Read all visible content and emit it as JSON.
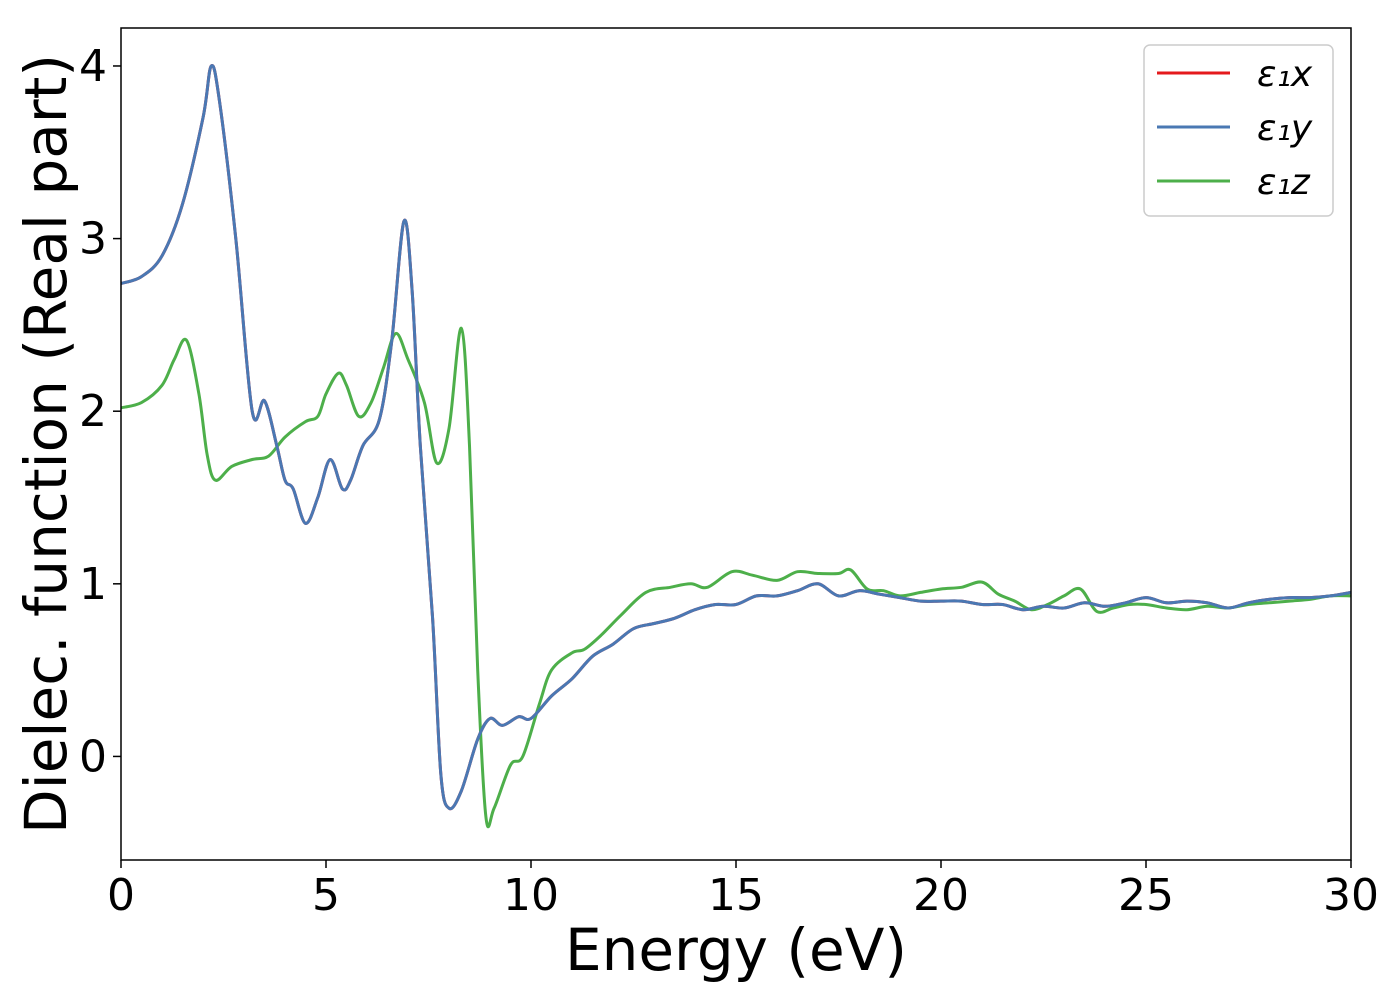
{
  "chart_data": {
    "type": "line",
    "title": "",
    "xlabel": "Energy (eV)",
    "ylabel": "Dielec. function (Real part)",
    "xlim": [
      0,
      30
    ],
    "ylim": [
      -0.6,
      4.22
    ],
    "xticks": [
      0,
      5,
      10,
      15,
      20,
      25,
      30
    ],
    "xtick_labels": [
      "0",
      "5",
      "10",
      "15",
      "20",
      "25",
      "30"
    ],
    "yticks": [
      0,
      1,
      2,
      3,
      4
    ],
    "ytick_labels": [
      "0",
      "1",
      "2",
      "3",
      "4"
    ],
    "grid": false,
    "legend_position": "top-right",
    "series": [
      {
        "name": "ε₁x",
        "color": "#e41a1c",
        "points": [
          [
            0,
            2.74
          ],
          [
            0.5,
            2.78
          ],
          [
            1.0,
            2.9
          ],
          [
            1.5,
            3.2
          ],
          [
            2.0,
            3.7
          ],
          [
            2.2,
            4.0
          ],
          [
            2.4,
            3.8
          ],
          [
            2.8,
            3.0
          ],
          [
            3.2,
            2.0
          ],
          [
            3.5,
            2.06
          ],
          [
            3.8,
            1.8
          ],
          [
            4.0,
            1.6
          ],
          [
            4.2,
            1.55
          ],
          [
            4.5,
            1.35
          ],
          [
            4.8,
            1.5
          ],
          [
            5.1,
            1.72
          ],
          [
            5.4,
            1.55
          ],
          [
            5.6,
            1.6
          ],
          [
            5.9,
            1.8
          ],
          [
            6.3,
            1.95
          ],
          [
            6.6,
            2.4
          ],
          [
            6.9,
            3.1
          ],
          [
            7.1,
            2.7
          ],
          [
            7.3,
            1.8
          ],
          [
            7.6,
            0.8
          ],
          [
            7.8,
            -0.1
          ],
          [
            8.0,
            -0.3
          ],
          [
            8.3,
            -0.2
          ],
          [
            8.7,
            0.1
          ],
          [
            9.0,
            0.22
          ],
          [
            9.3,
            0.18
          ],
          [
            9.7,
            0.23
          ],
          [
            10.0,
            0.22
          ],
          [
            10.5,
            0.35
          ],
          [
            11.0,
            0.45
          ],
          [
            11.5,
            0.58
          ],
          [
            12.0,
            0.65
          ],
          [
            12.5,
            0.74
          ],
          [
            13.0,
            0.77
          ],
          [
            13.5,
            0.8
          ],
          [
            14.0,
            0.85
          ],
          [
            14.5,
            0.88
          ],
          [
            15.0,
            0.88
          ],
          [
            15.5,
            0.93
          ],
          [
            16.0,
            0.93
          ],
          [
            16.5,
            0.96
          ],
          [
            17.0,
            1.0
          ],
          [
            17.5,
            0.93
          ],
          [
            18.0,
            0.96
          ],
          [
            18.5,
            0.94
          ],
          [
            19.0,
            0.92
          ],
          [
            19.5,
            0.9
          ],
          [
            20.0,
            0.9
          ],
          [
            20.5,
            0.9
          ],
          [
            21.0,
            0.88
          ],
          [
            21.5,
            0.88
          ],
          [
            22.0,
            0.85
          ],
          [
            22.5,
            0.87
          ],
          [
            23.0,
            0.86
          ],
          [
            23.5,
            0.89
          ],
          [
            24.0,
            0.87
          ],
          [
            24.5,
            0.89
          ],
          [
            25.0,
            0.92
          ],
          [
            25.5,
            0.89
          ],
          [
            26.0,
            0.9
          ],
          [
            26.5,
            0.89
          ],
          [
            27.0,
            0.86
          ],
          [
            27.5,
            0.89
          ],
          [
            28.0,
            0.91
          ],
          [
            28.5,
            0.92
          ],
          [
            29.0,
            0.92
          ],
          [
            29.5,
            0.93
          ],
          [
            30.0,
            0.95
          ]
        ]
      },
      {
        "name": "ε₁y",
        "color": "#4a78b3",
        "points": [
          [
            0,
            2.74
          ],
          [
            0.5,
            2.78
          ],
          [
            1.0,
            2.9
          ],
          [
            1.5,
            3.2
          ],
          [
            2.0,
            3.7
          ],
          [
            2.2,
            4.0
          ],
          [
            2.4,
            3.8
          ],
          [
            2.8,
            3.0
          ],
          [
            3.2,
            2.0
          ],
          [
            3.5,
            2.06
          ],
          [
            3.8,
            1.8
          ],
          [
            4.0,
            1.6
          ],
          [
            4.2,
            1.55
          ],
          [
            4.5,
            1.35
          ],
          [
            4.8,
            1.5
          ],
          [
            5.1,
            1.72
          ],
          [
            5.4,
            1.55
          ],
          [
            5.6,
            1.6
          ],
          [
            5.9,
            1.8
          ],
          [
            6.3,
            1.95
          ],
          [
            6.6,
            2.4
          ],
          [
            6.9,
            3.1
          ],
          [
            7.1,
            2.7
          ],
          [
            7.3,
            1.8
          ],
          [
            7.6,
            0.8
          ],
          [
            7.8,
            -0.1
          ],
          [
            8.0,
            -0.3
          ],
          [
            8.3,
            -0.2
          ],
          [
            8.7,
            0.1
          ],
          [
            9.0,
            0.22
          ],
          [
            9.3,
            0.18
          ],
          [
            9.7,
            0.23
          ],
          [
            10.0,
            0.22
          ],
          [
            10.5,
            0.35
          ],
          [
            11.0,
            0.45
          ],
          [
            11.5,
            0.58
          ],
          [
            12.0,
            0.65
          ],
          [
            12.5,
            0.74
          ],
          [
            13.0,
            0.77
          ],
          [
            13.5,
            0.8
          ],
          [
            14.0,
            0.85
          ],
          [
            14.5,
            0.88
          ],
          [
            15.0,
            0.88
          ],
          [
            15.5,
            0.93
          ],
          [
            16.0,
            0.93
          ],
          [
            16.5,
            0.96
          ],
          [
            17.0,
            1.0
          ],
          [
            17.5,
            0.93
          ],
          [
            18.0,
            0.96
          ],
          [
            18.5,
            0.94
          ],
          [
            19.0,
            0.92
          ],
          [
            19.5,
            0.9
          ],
          [
            20.0,
            0.9
          ],
          [
            20.5,
            0.9
          ],
          [
            21.0,
            0.88
          ],
          [
            21.5,
            0.88
          ],
          [
            22.0,
            0.85
          ],
          [
            22.5,
            0.87
          ],
          [
            23.0,
            0.86
          ],
          [
            23.5,
            0.89
          ],
          [
            24.0,
            0.87
          ],
          [
            24.5,
            0.89
          ],
          [
            25.0,
            0.92
          ],
          [
            25.5,
            0.89
          ],
          [
            26.0,
            0.9
          ],
          [
            26.5,
            0.89
          ],
          [
            27.0,
            0.86
          ],
          [
            27.5,
            0.89
          ],
          [
            28.0,
            0.91
          ],
          [
            28.5,
            0.92
          ],
          [
            29.0,
            0.92
          ],
          [
            29.5,
            0.93
          ],
          [
            30.0,
            0.95
          ]
        ]
      },
      {
        "name": "ε₁z",
        "color": "#4daf4a",
        "points": [
          [
            0,
            2.02
          ],
          [
            0.5,
            2.05
          ],
          [
            1.0,
            2.15
          ],
          [
            1.3,
            2.3
          ],
          [
            1.6,
            2.41
          ],
          [
            1.9,
            2.1
          ],
          [
            2.1,
            1.75
          ],
          [
            2.3,
            1.6
          ],
          [
            2.7,
            1.68
          ],
          [
            3.2,
            1.72
          ],
          [
            3.6,
            1.74
          ],
          [
            4.0,
            1.85
          ],
          [
            4.5,
            1.94
          ],
          [
            4.8,
            1.97
          ],
          [
            5.0,
            2.1
          ],
          [
            5.3,
            2.22
          ],
          [
            5.5,
            2.15
          ],
          [
            5.8,
            1.97
          ],
          [
            6.1,
            2.05
          ],
          [
            6.4,
            2.25
          ],
          [
            6.7,
            2.45
          ],
          [
            7.0,
            2.3
          ],
          [
            7.4,
            2.05
          ],
          [
            7.7,
            1.7
          ],
          [
            8.0,
            1.9
          ],
          [
            8.3,
            2.48
          ],
          [
            8.5,
            1.8
          ],
          [
            8.7,
            0.5
          ],
          [
            8.9,
            -0.35
          ],
          [
            9.1,
            -0.3
          ],
          [
            9.5,
            -0.05
          ],
          [
            9.8,
            0.0
          ],
          [
            10.2,
            0.3
          ],
          [
            10.5,
            0.5
          ],
          [
            11.0,
            0.6
          ],
          [
            11.3,
            0.62
          ],
          [
            11.7,
            0.7
          ],
          [
            12.2,
            0.82
          ],
          [
            12.8,
            0.95
          ],
          [
            13.4,
            0.98
          ],
          [
            13.9,
            1.0
          ],
          [
            14.3,
            0.98
          ],
          [
            14.9,
            1.07
          ],
          [
            15.4,
            1.05
          ],
          [
            16.0,
            1.02
          ],
          [
            16.5,
            1.07
          ],
          [
            17.0,
            1.06
          ],
          [
            17.5,
            1.06
          ],
          [
            17.8,
            1.08
          ],
          [
            18.2,
            0.97
          ],
          [
            18.6,
            0.96
          ],
          [
            19.0,
            0.93
          ],
          [
            19.5,
            0.95
          ],
          [
            20.0,
            0.97
          ],
          [
            20.5,
            0.98
          ],
          [
            21.0,
            1.01
          ],
          [
            21.4,
            0.94
          ],
          [
            21.8,
            0.9
          ],
          [
            22.2,
            0.85
          ],
          [
            22.6,
            0.88
          ],
          [
            23.0,
            0.93
          ],
          [
            23.4,
            0.97
          ],
          [
            23.8,
            0.84
          ],
          [
            24.2,
            0.86
          ],
          [
            24.6,
            0.88
          ],
          [
            25.0,
            0.88
          ],
          [
            25.5,
            0.86
          ],
          [
            26.0,
            0.85
          ],
          [
            26.5,
            0.87
          ],
          [
            27.0,
            0.86
          ],
          [
            27.5,
            0.88
          ],
          [
            28.0,
            0.89
          ],
          [
            28.5,
            0.9
          ],
          [
            29.0,
            0.91
          ],
          [
            29.5,
            0.93
          ],
          [
            30.0,
            0.93
          ]
        ]
      }
    ]
  }
}
